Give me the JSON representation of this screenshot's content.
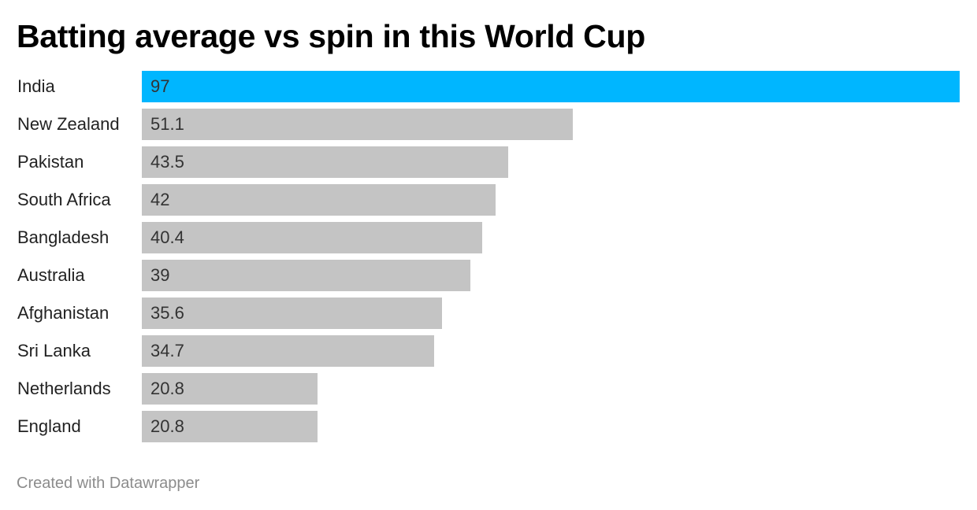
{
  "title": "Batting average vs spin in this World Cup",
  "footer": "Created with Datawrapper",
  "colors": {
    "highlight": "#00b6ff",
    "default": "#c4c4c4"
  },
  "chart_data": {
    "type": "bar",
    "orientation": "horizontal",
    "title": "Batting average vs spin in this World Cup",
    "xlabel": "",
    "ylabel": "",
    "xlim": [
      0,
      97
    ],
    "grid": false,
    "categories": [
      "India",
      "New Zealand",
      "Pakistan",
      "South Africa",
      "Bangladesh",
      "Australia",
      "Afghanistan",
      "Sri Lanka",
      "Netherlands",
      "England"
    ],
    "values": [
      97,
      51.1,
      43.5,
      42,
      40.4,
      39,
      35.6,
      34.7,
      20.8,
      20.8
    ],
    "value_labels": [
      "97",
      "51.1",
      "43.5",
      "42",
      "40.4",
      "39",
      "35.6",
      "34.7",
      "20.8",
      "20.8"
    ],
    "highlighted": [
      "India"
    ]
  }
}
